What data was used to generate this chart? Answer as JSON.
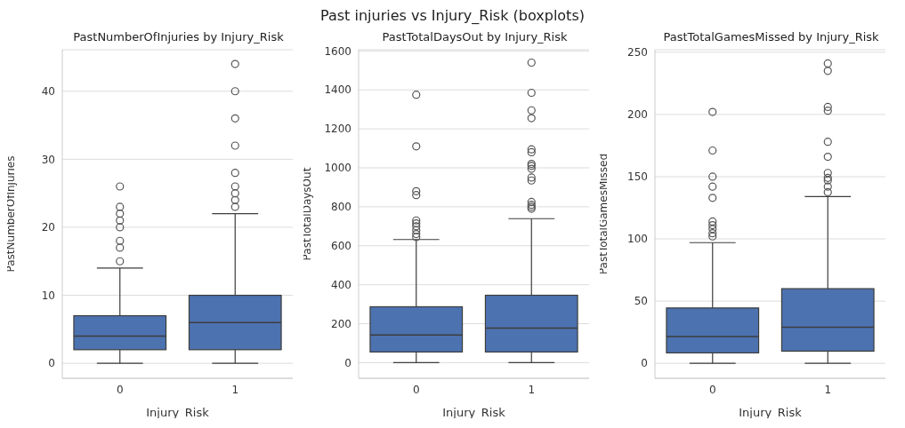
{
  "chart_data": [
    {
      "type": "other",
      "title": "Past injuries vs Injury_Risk (boxplots)"
    },
    {
      "type": "box",
      "title": "PastNumberOfInjuries by Injury_Risk",
      "xlabel": "Injury_Risk",
      "ylabel": "PastNumberOfInjuries",
      "categories": [
        "0",
        "1"
      ],
      "color": "#4c72b0",
      "ylim": [
        -2.2,
        46.1
      ],
      "yticks": [
        0,
        10,
        20,
        30,
        40
      ],
      "grid": "y",
      "marker": "circle",
      "boxes": [
        {
          "low": 0,
          "q1": 2,
          "median": 4,
          "q3": 7,
          "high": 14,
          "outliers": [
            15,
            17,
            18,
            20,
            21,
            22,
            23,
            26
          ]
        },
        {
          "low": 0,
          "q1": 2,
          "median": 6,
          "q3": 10,
          "high": 22,
          "outliers": [
            23,
            24,
            25,
            26,
            28,
            32,
            36,
            40,
            44
          ]
        }
      ]
    },
    {
      "type": "box",
      "title": "PastTotalDaysOut by Injury_Risk",
      "xlabel": "Injury_Risk",
      "ylabel": "PastTotalDaysOut",
      "categories": [
        "0",
        "1"
      ],
      "color": "#4c72b0",
      "ylim": [
        -80,
        1606
      ],
      "yticks": [
        0,
        200,
        400,
        600,
        800,
        1000,
        1200,
        1400,
        1600
      ],
      "grid": "y",
      "marker": "circle",
      "boxes": [
        {
          "low": 0,
          "q1": 55,
          "median": 142,
          "q3": 287,
          "high": 632,
          "outliers": [
            645,
            660,
            680,
            700,
            715,
            730,
            860,
            880,
            1110,
            1375
          ]
        },
        {
          "low": 0,
          "q1": 55,
          "median": 178,
          "q3": 346,
          "high": 739,
          "outliers": [
            790,
            800,
            810,
            825,
            935,
            950,
            995,
            1010,
            1020,
            1080,
            1095,
            1255,
            1295,
            1385,
            1540
          ]
        }
      ]
    },
    {
      "type": "box",
      "title": "PastTotalGamesMissed by Injury_Risk",
      "xlabel": "Injury_Risk",
      "ylabel": "PastTotalGamesMissed",
      "categories": [
        "0",
        "1"
      ],
      "color": "#4c72b0",
      "ylim": [
        -12,
        252
      ],
      "yticks": [
        0,
        50,
        100,
        150,
        200,
        250
      ],
      "grid": "y",
      "marker": "circle",
      "boxes": [
        {
          "low": 0,
          "q1": 8.4,
          "median": 21.6,
          "q3": 44.5,
          "high": 97,
          "outliers": [
            102,
            104.5,
            108,
            111,
            114,
            133,
            142,
            150,
            171,
            202
          ]
        },
        {
          "low": 0,
          "q1": 9.8,
          "median": 29,
          "q3": 60,
          "high": 134,
          "outliers": [
            137.5,
            142,
            147,
            149,
            153,
            166,
            178,
            203,
            206,
            235,
            241
          ]
        }
      ]
    }
  ]
}
